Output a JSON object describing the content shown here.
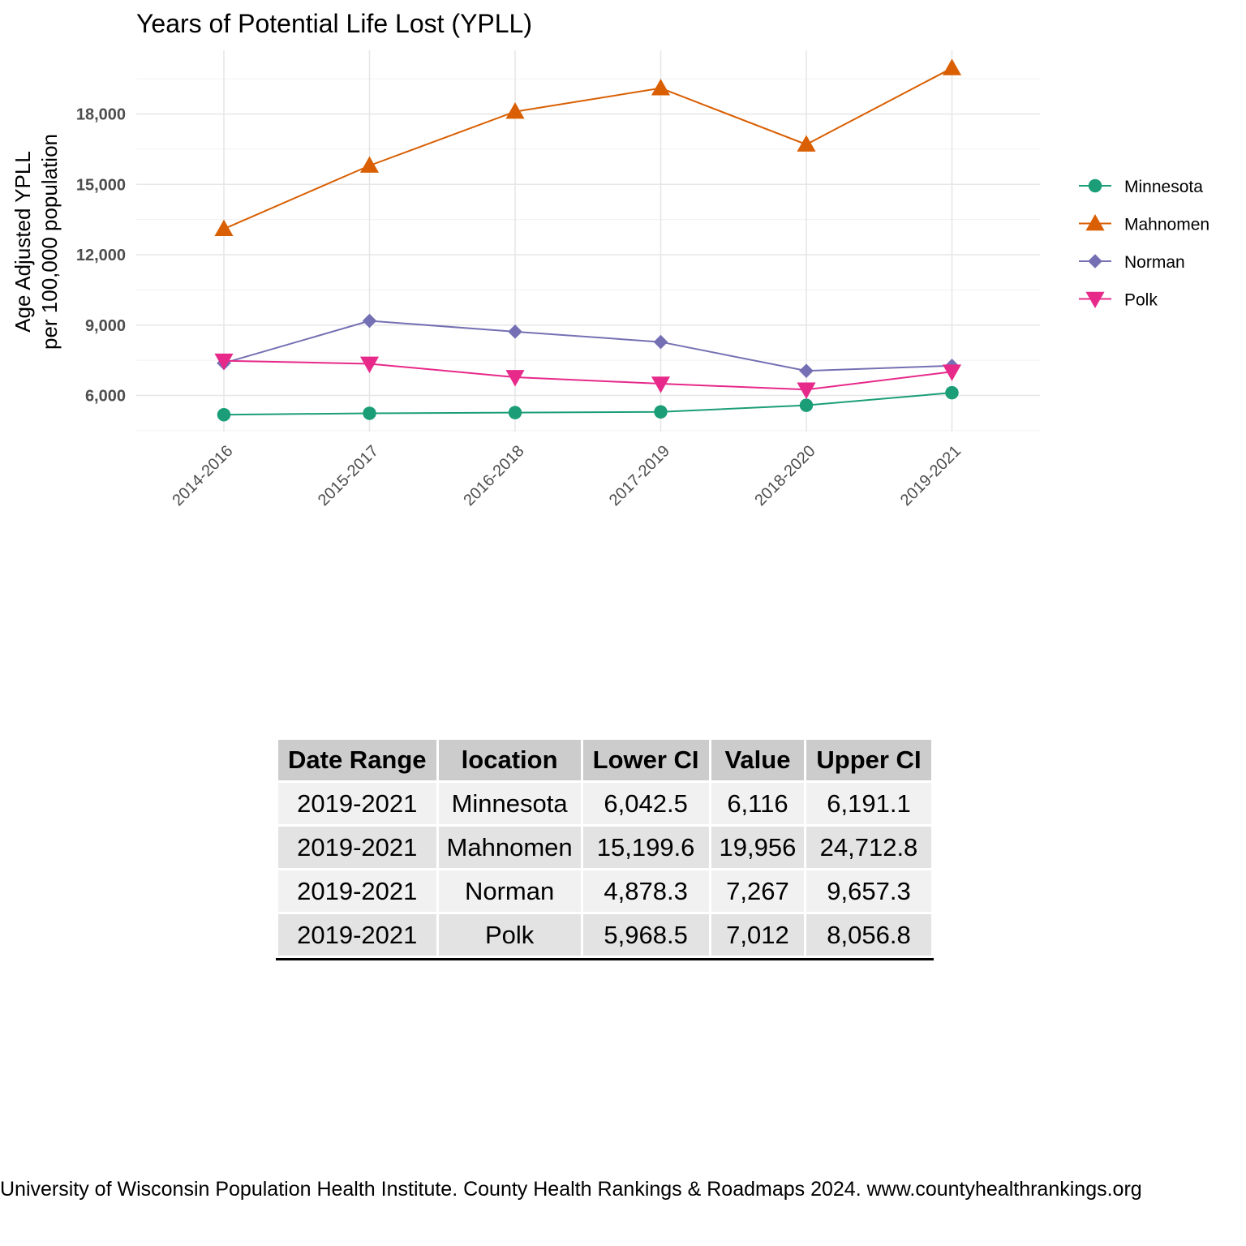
{
  "chart_data": {
    "type": "line",
    "title": "Years of Potential Life Lost (YPLL)",
    "ylabel_lines": [
      "Age Adjusted YPLL",
      "per 100,000 population"
    ],
    "xlabel": "",
    "categories": [
      "2014-2016",
      "2015-2017",
      "2016-2018",
      "2017-2019",
      "2018-2020",
      "2019-2021"
    ],
    "yticks": [
      6000,
      9000,
      12000,
      15000,
      18000
    ],
    "ytick_labels": [
      "6,000",
      "9,000",
      "12,000",
      "15,000",
      "18,000"
    ],
    "ylim": [
      4500,
      20000
    ],
    "grid": true,
    "legend_position": "right",
    "series": [
      {
        "name": "Minnesota",
        "color": "#1b9e77",
        "marker": "circle",
        "values": [
          5180,
          5240,
          5270,
          5300,
          5580,
          6116
        ]
      },
      {
        "name": "Mahnomen",
        "color": "#d95f02",
        "marker": "triangle-up",
        "values": [
          13100,
          15800,
          18100,
          19100,
          16700,
          19956
        ]
      },
      {
        "name": "Norman",
        "color": "#7570b3",
        "marker": "diamond",
        "values": [
          7380,
          9180,
          8720,
          8280,
          7050,
          7267
        ]
      },
      {
        "name": "Polk",
        "color": "#e7298a",
        "marker": "triangle-down",
        "values": [
          7480,
          7350,
          6780,
          6500,
          6250,
          7012
        ]
      }
    ]
  },
  "table": {
    "headers": [
      "Date Range",
      "location",
      "Lower CI",
      "Value",
      "Upper CI"
    ],
    "rows": [
      [
        "2019-2021",
        "Minnesota",
        "6,042.5",
        "6,116",
        "6,191.1"
      ],
      [
        "2019-2021",
        "Mahnomen",
        "15,199.6",
        "19,956",
        "24,712.8"
      ],
      [
        "2019-2021",
        "Norman",
        "4,878.3",
        "7,267",
        "9,657.3"
      ],
      [
        "2019-2021",
        "Polk",
        "5,968.5",
        "7,012",
        "8,056.8"
      ]
    ]
  },
  "source": "University of Wisconsin Population Health Institute. County Health Rankings & Roadmaps 2024. www.countyhealthrankings.org"
}
